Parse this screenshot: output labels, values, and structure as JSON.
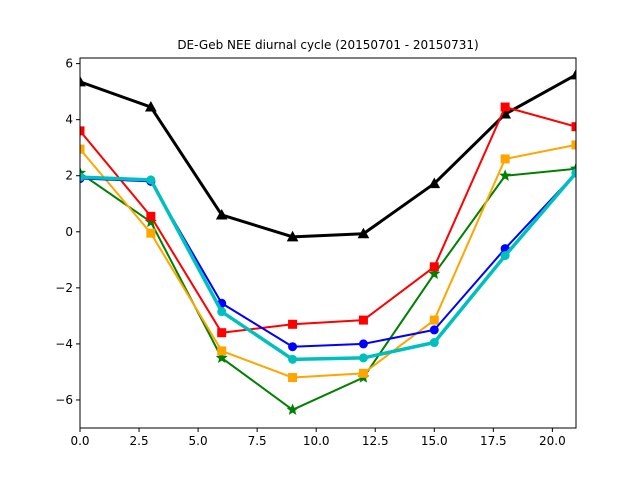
{
  "chart_data": {
    "type": "line",
    "title": "DE-Geb NEE diurnal cycle (20150701 - 20150731)",
    "xlabel": "",
    "ylabel": "",
    "xlim": [
      0,
      21
    ],
    "ylim": [
      -7,
      6.2
    ],
    "grid": false,
    "legend": "none",
    "x": [
      0,
      3,
      6,
      9,
      12,
      15,
      18,
      21
    ],
    "x_ticks": [
      0.0,
      2.5,
      5.0,
      7.5,
      10.0,
      12.5,
      15.0,
      17.5,
      20.0
    ],
    "x_tick_labels": [
      "0.0",
      "2.5",
      "5.0",
      "7.5",
      "10.0",
      "12.5",
      "15.0",
      "17.5",
      "20.0"
    ],
    "y_ticks": [
      -6,
      -4,
      -2,
      0,
      2,
      4,
      6
    ],
    "y_tick_labels": [
      "−6",
      "−4",
      "−2",
      "0",
      "2",
      "4",
      "6"
    ],
    "series": [
      {
        "values": [
          5.35,
          4.45,
          0.6,
          -0.18,
          -0.07,
          1.72,
          4.2,
          5.6
        ],
        "color": "#000000",
        "marker": "triangle",
        "width": 3
      },
      {
        "values": [
          2.1,
          0.35,
          -4.5,
          -6.35,
          -5.2,
          -1.5,
          2.0,
          2.25
        ],
        "color": "#008000",
        "marker": "star",
        "width": 2
      },
      {
        "values": [
          3.6,
          0.55,
          -3.6,
          -3.3,
          -3.15,
          -1.25,
          4.45,
          3.75
        ],
        "color": "#ff0000",
        "marker": "square",
        "width": 2
      },
      {
        "values": [
          2.95,
          -0.05,
          -4.25,
          -5.2,
          -5.05,
          -3.15,
          2.6,
          3.1
        ],
        "color": "#ffa500",
        "marker": "square",
        "width": 2
      },
      {
        "values": [
          1.9,
          1.8,
          -2.55,
          -4.1,
          -4.0,
          -3.5,
          -0.6,
          2.1
        ],
        "color": "#0000ff",
        "marker": "circle",
        "width": 2
      },
      {
        "values": [
          1.95,
          1.85,
          -2.85,
          -4.55,
          -4.5,
          -3.95,
          -0.85,
          2.1
        ],
        "color": "#00bfbf",
        "marker": "circle",
        "width": 3.5
      }
    ]
  }
}
